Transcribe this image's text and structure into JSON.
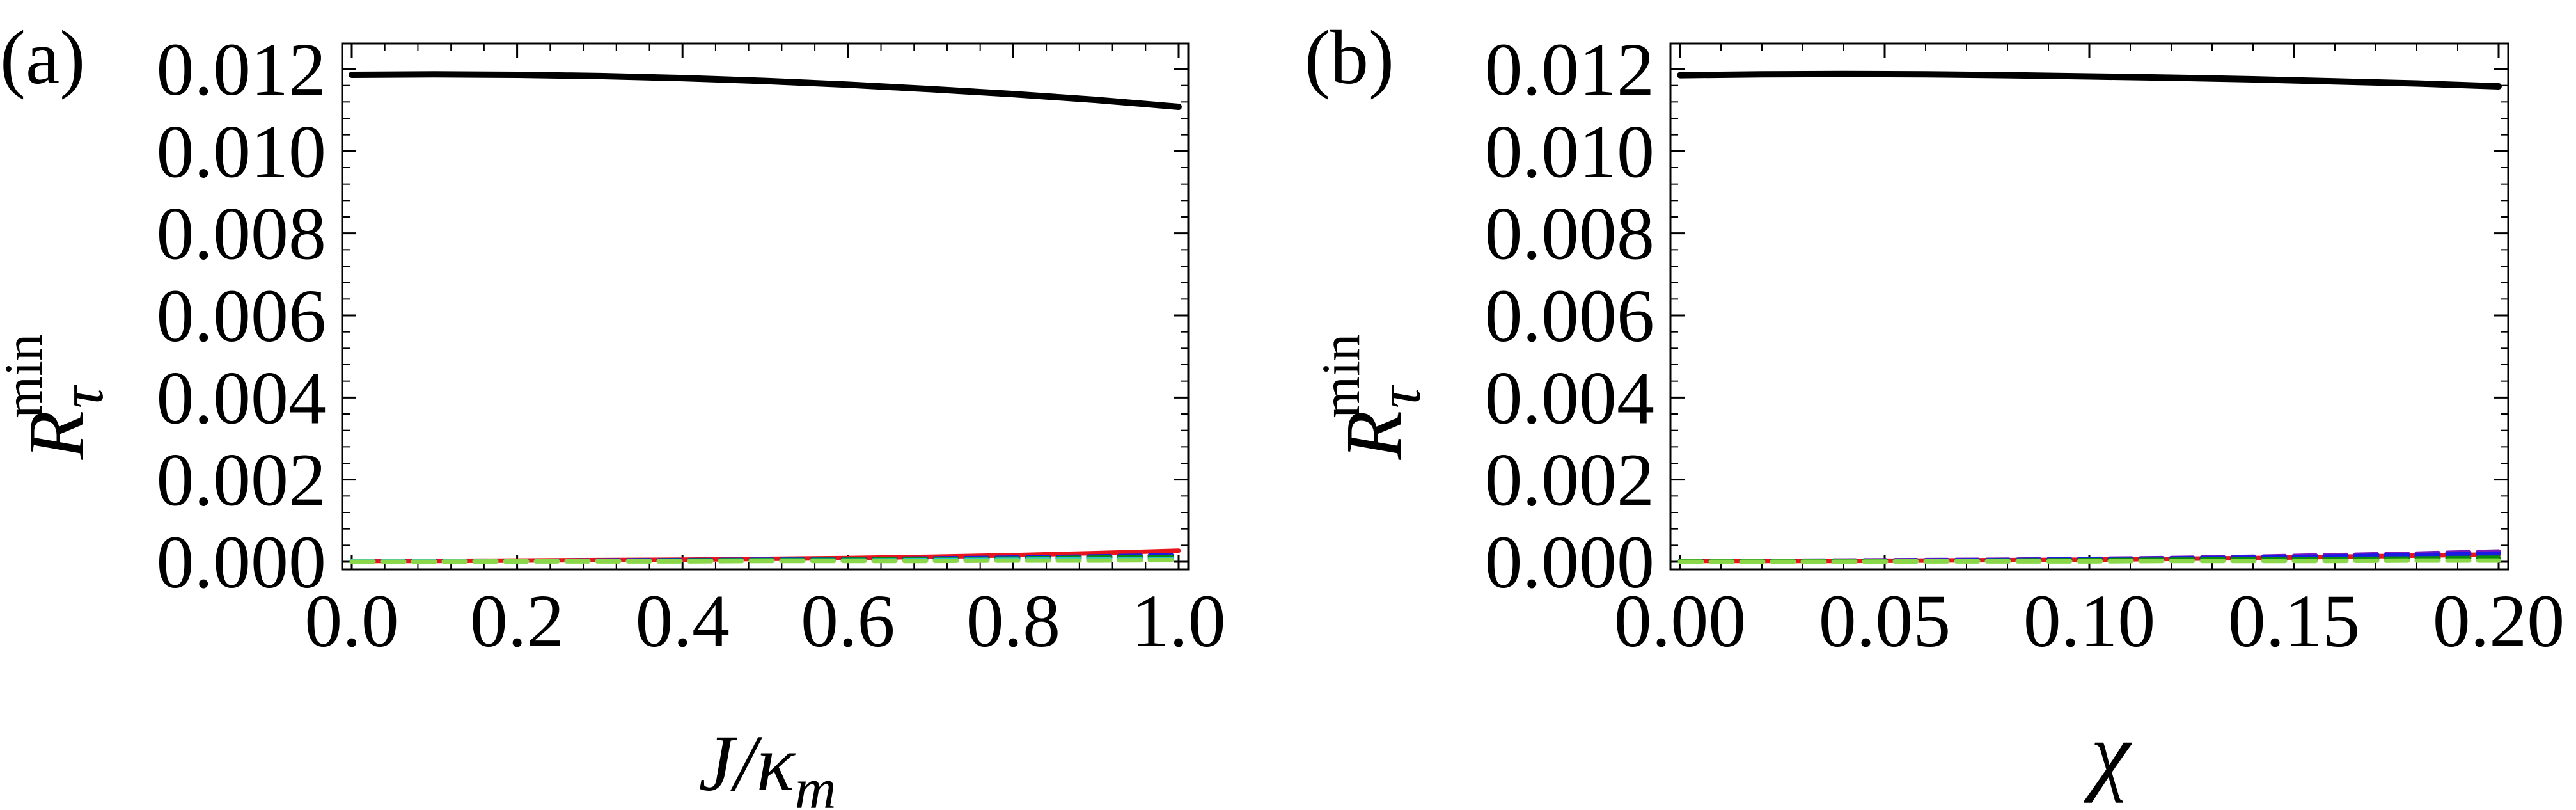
{
  "panels": [
    {
      "panel_label": "(a)",
      "chart_data": {
        "type": "line",
        "xlabel": "J/κ_m",
        "ylabel": "R_τ^min",
        "xlim": [
          0,
          1.0
        ],
        "ylim": [
          0,
          0.012
        ],
        "x_ticks": [
          "0.0",
          "0.2",
          "0.4",
          "0.6",
          "0.8",
          "1.0"
        ],
        "y_ticks": [
          "0.000",
          "0.002",
          "0.004",
          "0.006",
          "0.008",
          "0.010",
          "0.012"
        ],
        "grid": false,
        "series": [
          {
            "color": "#000000",
            "style": "solid",
            "x": [
              0,
              0.1,
              0.2,
              0.3,
              0.4,
              0.5,
              0.6,
              0.7,
              0.8,
              0.9,
              1.0
            ],
            "y": [
              0.01186,
              0.01187,
              0.01186,
              0.01183,
              0.01178,
              0.01171,
              0.01162,
              0.01151,
              0.01139,
              0.01125,
              0.01108
            ]
          },
          {
            "color": "#e8141c",
            "style": "solid",
            "x": [
              0,
              0.1,
              0.2,
              0.3,
              0.4,
              0.5,
              0.6,
              0.7,
              0.8,
              0.9,
              1.0
            ],
            "y": [
              2e-05,
              2e-05,
              3e-05,
              4e-05,
              5e-05,
              7e-05,
              9e-05,
              0.00012,
              0.00016,
              0.00021,
              0.00027
            ]
          },
          {
            "color": "#1a1ae6",
            "style": "dashed",
            "x": [
              0,
              0.1,
              0.2,
              0.3,
              0.4,
              0.5,
              0.6,
              0.7,
              0.8,
              0.9,
              1.0
            ],
            "y": [
              2e-05,
              2e-05,
              2e-05,
              3e-05,
              4e-05,
              5e-05,
              6e-05,
              8e-05,
              0.0001,
              0.00013,
              0.00016
            ]
          },
          {
            "color": "#0a8a0a",
            "style": "dashed",
            "x": [
              0,
              0.1,
              0.2,
              0.3,
              0.4,
              0.5,
              0.6,
              0.7,
              0.8,
              0.9,
              1.0
            ],
            "y": [
              1e-05,
              1e-05,
              2e-05,
              2e-05,
              3e-05,
              4e-05,
              5e-05,
              6e-05,
              8e-05,
              0.0001,
              0.00012
            ]
          },
          {
            "color": "#2ec4d8",
            "style": "dashed",
            "x": [
              0,
              0.1,
              0.2,
              0.3,
              0.4,
              0.5,
              0.6,
              0.7,
              0.8,
              0.9,
              1.0
            ],
            "y": [
              1e-05,
              1e-05,
              1e-05,
              2e-05,
              2e-05,
              3e-05,
              3e-05,
              4e-05,
              5e-05,
              6e-05,
              7e-05
            ]
          },
          {
            "color": "#8ad84a",
            "style": "dashed",
            "x": [
              0,
              0.1,
              0.2,
              0.3,
              0.4,
              0.5,
              0.6,
              0.7,
              0.8,
              0.9,
              1.0
            ],
            "y": [
              0.0,
              0.0,
              1e-05,
              1e-05,
              1e-05,
              2e-05,
              2e-05,
              2e-05,
              3e-05,
              3e-05,
              4e-05
            ]
          }
        ]
      }
    },
    {
      "panel_label": "(b)",
      "chart_data": {
        "type": "line",
        "xlabel": "χ",
        "ylabel": "R_τ^min",
        "xlim": [
          0,
          0.2
        ],
        "ylim": [
          0,
          0.012
        ],
        "x_ticks": [
          "0.00",
          "0.05",
          "0.10",
          "0.15",
          "0.20"
        ],
        "y_ticks": [
          "0.000",
          "0.002",
          "0.004",
          "0.006",
          "0.008",
          "0.010",
          "0.012"
        ],
        "grid": false,
        "series": [
          {
            "color": "#000000",
            "style": "solid",
            "x": [
              0,
              0.02,
              0.04,
              0.06,
              0.08,
              0.1,
              0.12,
              0.14,
              0.16,
              0.18,
              0.2
            ],
            "y": [
              0.01185,
              0.01187,
              0.01188,
              0.01187,
              0.01185,
              0.01182,
              0.01179,
              0.01175,
              0.0117,
              0.01165,
              0.01158
            ]
          },
          {
            "color": "#e8141c",
            "style": "solid",
            "x": [
              0,
              0.02,
              0.04,
              0.06,
              0.08,
              0.1,
              0.12,
              0.14,
              0.16,
              0.18,
              0.2
            ],
            "y": [
              2e-05,
              2e-05,
              2e-05,
              3e-05,
              4e-05,
              5e-05,
              7e-05,
              9e-05,
              0.00012,
              0.00015,
              0.00018
            ]
          },
          {
            "color": "#7a1ab8",
            "style": "dashed",
            "x": [
              0,
              0.02,
              0.04,
              0.06,
              0.08,
              0.1,
              0.12,
              0.14,
              0.16,
              0.18,
              0.2
            ],
            "y": [
              2e-05,
              2e-05,
              3e-05,
              4e-05,
              5e-05,
              7e-05,
              9e-05,
              0.00012,
              0.00016,
              0.0002,
              0.00025
            ]
          },
          {
            "color": "#1a1ae6",
            "style": "dashed",
            "x": [
              0,
              0.02,
              0.04,
              0.06,
              0.08,
              0.1,
              0.12,
              0.14,
              0.16,
              0.18,
              0.2
            ],
            "y": [
              2e-05,
              2e-05,
              2e-05,
              3e-05,
              4e-05,
              6e-05,
              8e-05,
              0.0001,
              0.00013,
              0.00016,
              0.0002
            ]
          },
          {
            "color": "#0a8a0a",
            "style": "dashed",
            "x": [
              0,
              0.02,
              0.04,
              0.06,
              0.08,
              0.1,
              0.12,
              0.14,
              0.16,
              0.18,
              0.2
            ],
            "y": [
              1e-05,
              1e-05,
              2e-05,
              2e-05,
              3e-05,
              4e-05,
              5e-05,
              6e-05,
              7e-05,
              8e-05,
              0.0001
            ]
          },
          {
            "color": "#8ad84a",
            "style": "dashed",
            "x": [
              0,
              0.02,
              0.04,
              0.06,
              0.08,
              0.1,
              0.12,
              0.14,
              0.16,
              0.18,
              0.2
            ],
            "y": [
              0.0,
              0.0,
              0.0,
              1e-05,
              1e-05,
              1e-05,
              2e-05,
              2e-05,
              2e-05,
              3e-05,
              3e-05
            ]
          }
        ]
      }
    }
  ]
}
